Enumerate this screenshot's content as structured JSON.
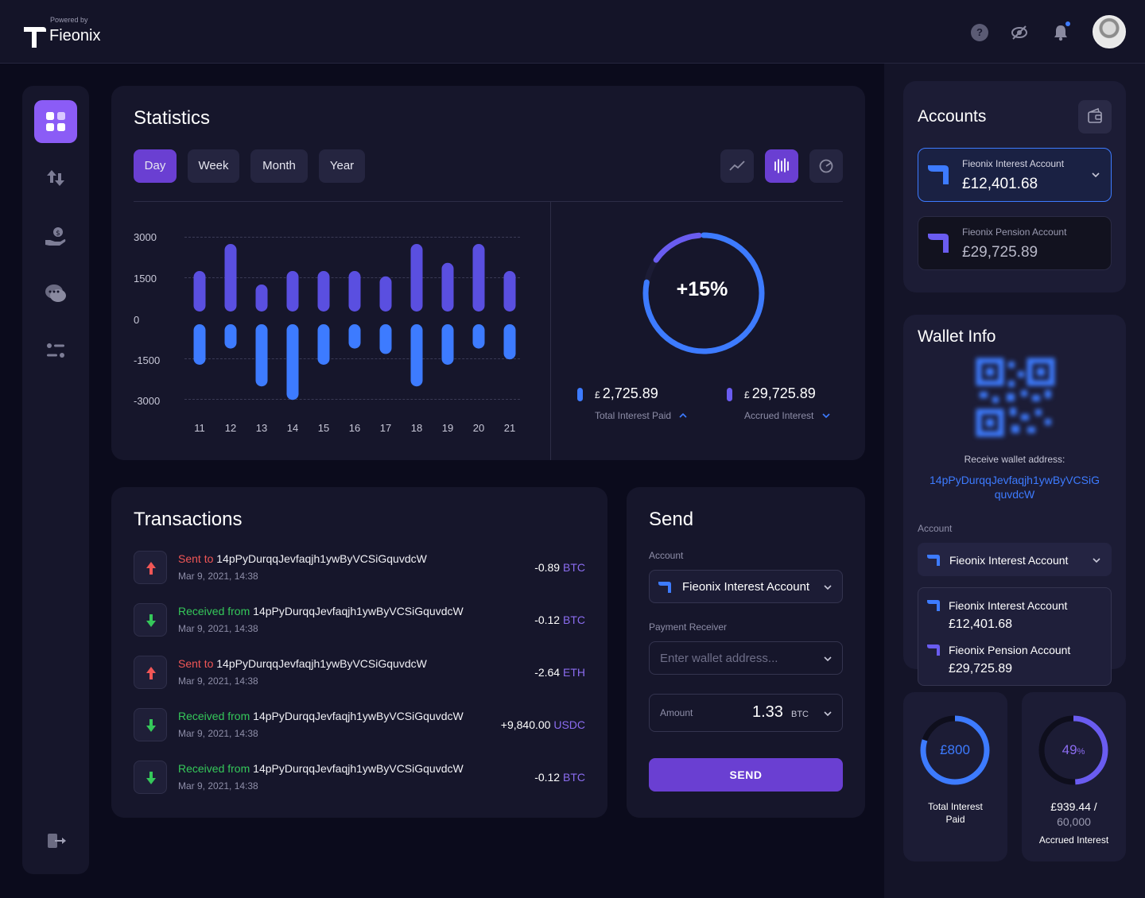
{
  "header": {
    "powered_by": "Powered by",
    "brand": "Fieonix",
    "help_glyph": "?"
  },
  "statistics": {
    "title": "Statistics",
    "periods": [
      "Day",
      "Week",
      "Month",
      "Year"
    ],
    "active_period": "Day",
    "donut_label": "+15%",
    "donut_percent": 15,
    "legend": [
      {
        "currency": "£",
        "value": "2,725.89",
        "caption": "Total Interest Paid",
        "color": "#3d7bff"
      },
      {
        "currency": "£",
        "value": "29,725.89",
        "caption": "Accrued Interest",
        "color": "#6a5cf0"
      }
    ]
  },
  "chart_data": {
    "type": "bar",
    "categories": [
      "11",
      "12",
      "13",
      "14",
      "15",
      "16",
      "17",
      "18",
      "19",
      "20",
      "21"
    ],
    "y_ticks": [
      "3000",
      "1500",
      "0",
      "-1500",
      "-3000"
    ],
    "ylim": [
      -3000,
      3000
    ],
    "series": [
      {
        "values": [
          1500,
          2500,
          1000,
          1500,
          1500,
          1500,
          1300,
          2500,
          1800,
          2500,
          1500
        ],
        "color": "#5a4fe0"
      },
      {
        "values": [
          -1500,
          -900,
          -2300,
          -2800,
          -1500,
          -900,
          -1100,
          -2300,
          -1500,
          -900,
          -1300
        ],
        "color": "#3d7bff"
      }
    ]
  },
  "transactions": {
    "title": "Transactions",
    "items": [
      {
        "kind": "sent",
        "prefix": "Sent to",
        "address": "14pPyDurqqJevfaqjh1ywByVCSiGquvdcW",
        "date": "Mar 9, 2021, 14:38",
        "amount": "-0.89",
        "currency": "BTC"
      },
      {
        "kind": "recv",
        "prefix": "Received from",
        "address": "14pPyDurqqJevfaqjh1ywByVCSiGquvdcW",
        "date": "Mar 9, 2021, 14:38",
        "amount": "-0.12",
        "currency": "BTC"
      },
      {
        "kind": "sent",
        "prefix": "Sent to",
        "address": "14pPyDurqqJevfaqjh1ywByVCSiGquvdcW",
        "date": "Mar 9, 2021, 14:38",
        "amount": "-2.64",
        "currency": "ETH"
      },
      {
        "kind": "recv",
        "prefix": "Received from",
        "address": "14pPyDurqqJevfaqjh1ywByVCSiGquvdcW",
        "date": "Mar 9, 2021, 14:38",
        "amount": "+9,840.00",
        "currency": "USDC"
      },
      {
        "kind": "recv",
        "prefix": "Received from",
        "address": "14pPyDurqqJevfaqjh1ywByVCSiGquvdcW",
        "date": "Mar 9, 2021, 14:38",
        "amount": "-0.12",
        "currency": "BTC"
      }
    ]
  },
  "send": {
    "title": "Send",
    "account_label": "Account",
    "account_value": "Fieonix Interest Account",
    "receiver_label": "Payment Receiver",
    "receiver_placeholder": "Enter wallet address...",
    "amount_label": "Amount",
    "amount_value": "1.33",
    "amount_currency": "BTC",
    "button": "SEND"
  },
  "accounts": {
    "title": "Accounts",
    "items": [
      {
        "name": "Fieonix Interest Account",
        "balance": "£12,401.68"
      },
      {
        "name": "Fieonix Pension Account",
        "balance": "£29,725.89"
      }
    ]
  },
  "wallet": {
    "title": "Wallet Info",
    "receive_label": "Receive wallet address:",
    "address_line1": "14pPyDurqqJevfaqjh1ywByVCSiG",
    "address_line2": "quvdcW",
    "account_label": "Account",
    "selected_account": "Fieonix Interest Account",
    "dropdown_options": [
      {
        "name": "Fieonix Interest Account",
        "balance": "£12,401.68"
      },
      {
        "name": "Fieonix Pension Account",
        "balance": "£29,725.89"
      }
    ]
  },
  "mini_stats": {
    "total_interest": {
      "value": "£800",
      "caption_line1": "Total Interest",
      "caption_line2": "Paid",
      "percent": 80
    },
    "accrued": {
      "value": "49",
      "unit": "%",
      "amount_line1": "£939.44 /",
      "amount_line2": "60,000",
      "caption": "Accrued Interest",
      "percent": 49
    }
  }
}
